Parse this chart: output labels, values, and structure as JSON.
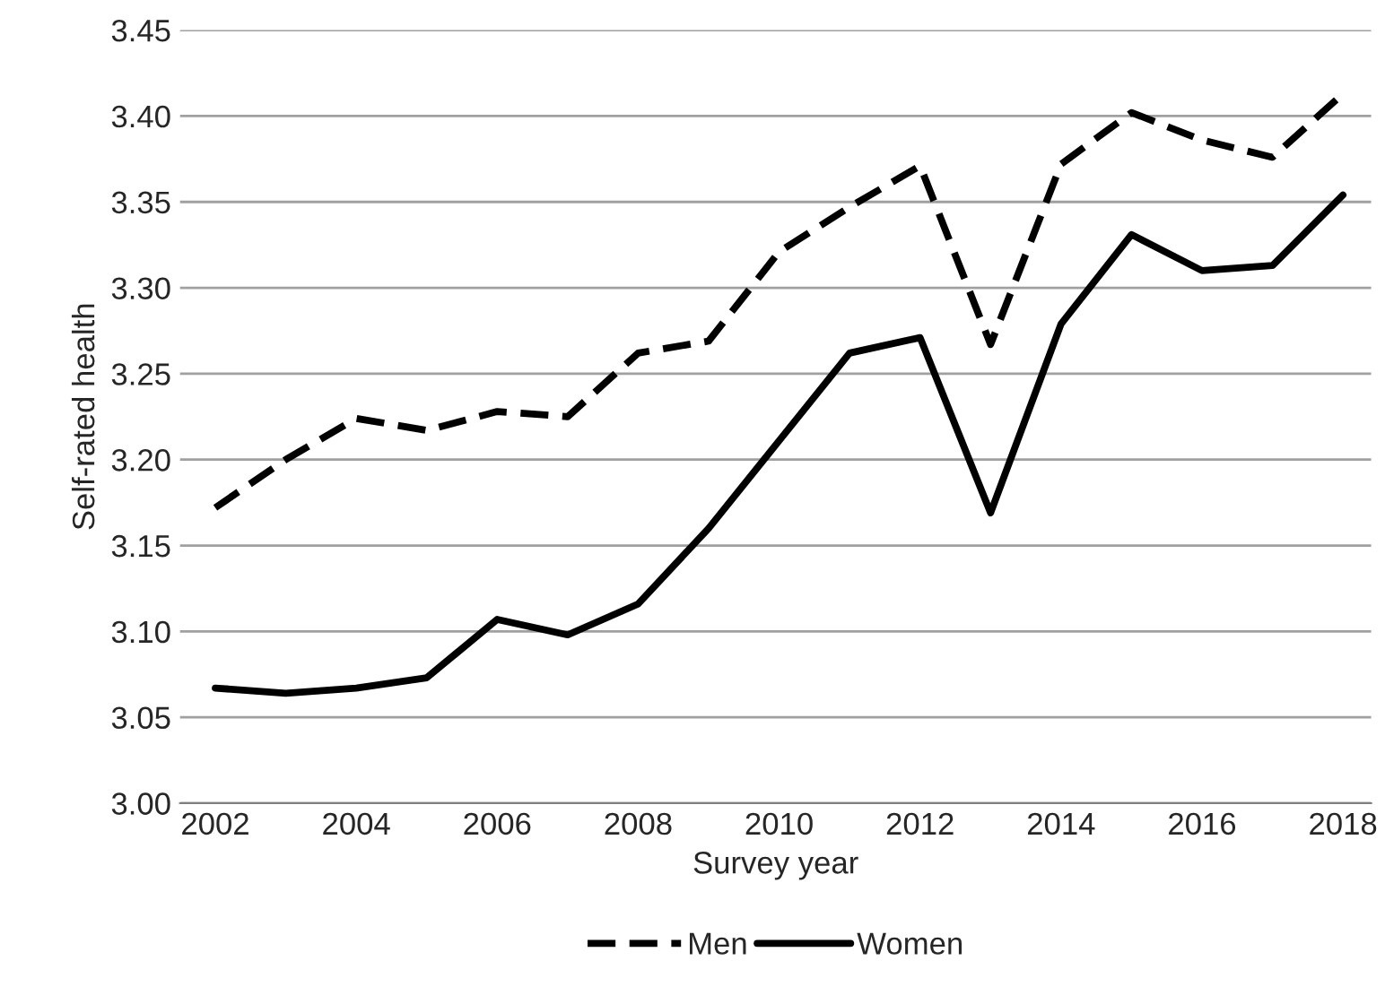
{
  "chart_data": {
    "type": "line",
    "xlabel": "Survey year",
    "ylabel": "Self-rated health",
    "x": [
      2002,
      2003,
      2004,
      2005,
      2006,
      2007,
      2008,
      2009,
      2010,
      2011,
      2012,
      2013,
      2014,
      2015,
      2016,
      2017,
      2018
    ],
    "series": [
      {
        "name": "Men",
        "color": "#000000",
        "line_style": "dashed",
        "values": [
          3.172,
          3.2,
          3.224,
          3.217,
          3.228,
          3.225,
          3.262,
          3.269,
          3.321,
          3.347,
          3.371,
          3.267,
          3.372,
          3.402,
          3.386,
          3.376,
          3.413
        ]
      },
      {
        "name": "Women",
        "color": "#000000",
        "line_style": "solid",
        "values": [
          3.067,
          3.064,
          3.067,
          3.073,
          3.107,
          3.098,
          3.116,
          3.16,
          3.211,
          3.262,
          3.271,
          3.169,
          3.279,
          3.331,
          3.31,
          3.313,
          3.354
        ]
      }
    ],
    "xlim": [
      2001.5,
      2018.4
    ],
    "xticks": [
      2002,
      2004,
      2006,
      2008,
      2010,
      2012,
      2014,
      2016,
      2018
    ],
    "ylim": [
      3.0,
      3.45
    ],
    "yticks": [
      {
        "value": 3.0,
        "label": "3.00"
      },
      {
        "value": 3.05,
        "label": "3.05"
      },
      {
        "value": 3.1,
        "label": "3.10"
      },
      {
        "value": 3.15,
        "label": "3.15"
      },
      {
        "value": 3.2,
        "label": "3.20"
      },
      {
        "value": 3.25,
        "label": "3.25"
      },
      {
        "value": 3.3,
        "label": "3.30"
      },
      {
        "value": 3.35,
        "label": "3.35"
      },
      {
        "value": 3.4,
        "label": "3.40"
      },
      {
        "value": 3.45,
        "label": "3.45"
      }
    ],
    "grid": "y",
    "legend": "bottom",
    "marker": "none"
  }
}
